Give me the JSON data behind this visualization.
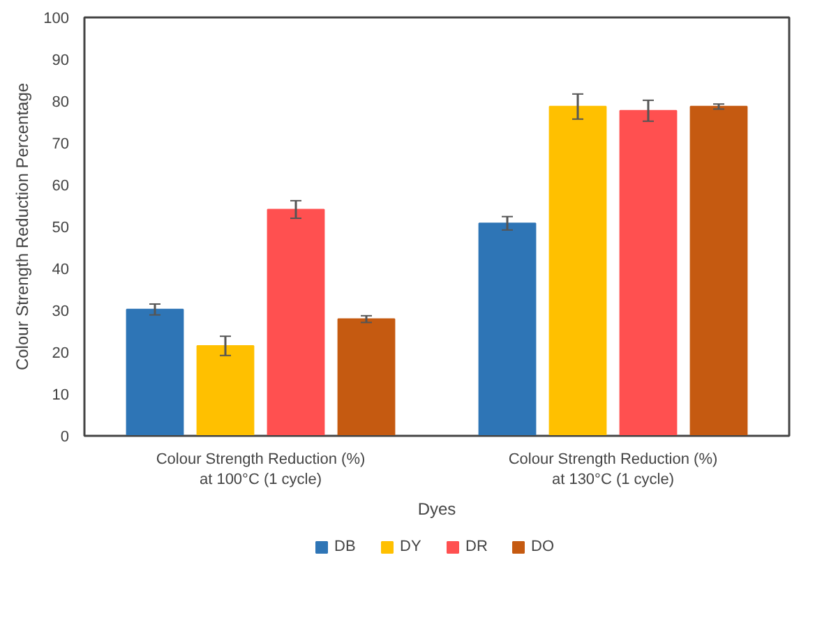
{
  "chart_data": {
    "type": "bar",
    "xlabel": "Dyes",
    "ylabel": "Colour Strength Reduction Percentage",
    "categories": [
      "Colour Strength Reduction (%)\nat 100°C (1 cycle)",
      "Colour Strength Reduction (%)\nat 130°C (1 cycle)"
    ],
    "series": [
      {
        "name": "DB",
        "color": "#2e75b6",
        "values": [
          30.2,
          50.8
        ],
        "errors": [
          1.3,
          1.6
        ]
      },
      {
        "name": "DY",
        "color": "#ffc000",
        "values": [
          21.5,
          78.7
        ],
        "errors": [
          2.3,
          3.0
        ]
      },
      {
        "name": "DR",
        "color": "#ff5050",
        "values": [
          54.1,
          77.7
        ],
        "errors": [
          2.1,
          2.5
        ]
      },
      {
        "name": "DO",
        "color": "#c55a11",
        "values": [
          27.9,
          78.7
        ],
        "errors": [
          0.8,
          0.6
        ]
      }
    ],
    "ylim": [
      0,
      100
    ],
    "yticks": [
      0,
      10,
      20,
      30,
      40,
      50,
      60,
      70,
      80,
      90,
      100
    ],
    "grid": false,
    "legend": "bottom"
  }
}
